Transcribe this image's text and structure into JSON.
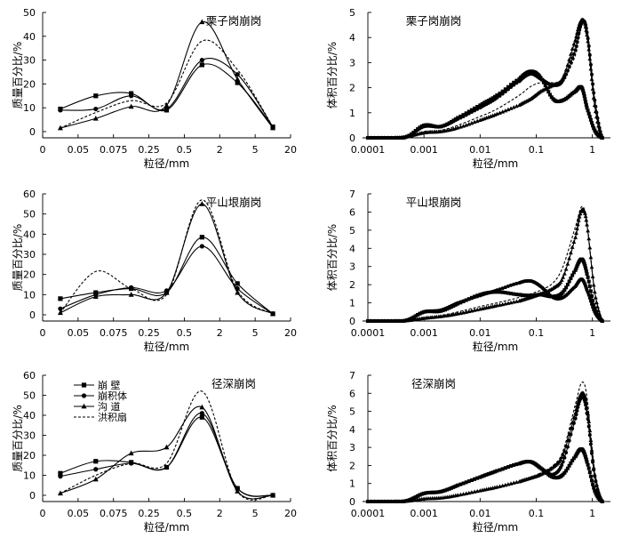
{
  "legend": [
    "崩 壁",
    "崩积体",
    "沟 道",
    "洪积扇"
  ],
  "chart_data": [
    {
      "type": "line",
      "title": "栗子岗崩岗",
      "xlabel": "粒径/mm",
      "ylabel": "质量百分比/%",
      "x_scale": "categorical",
      "categories": [
        "0",
        "0.05",
        "0.075",
        "0.25",
        "0.5",
        "2",
        "5",
        "20"
      ],
      "ylim": [
        0,
        50
      ],
      "yticks": [
        0,
        10,
        20,
        30,
        40,
        50
      ],
      "grid": false,
      "legend_position": "none",
      "series": [
        {
          "name": "崩 壁",
          "x": [
            0.5,
            1.5,
            2.5,
            3.5,
            4.5,
            5.5,
            6.5
          ],
          "values": [
            9.5,
            15,
            16,
            9,
            28,
            20.5,
            2
          ]
        },
        {
          "name": "崩积体",
          "x": [
            0.5,
            1.5,
            2.5,
            3.5,
            4.5,
            5.5,
            6.5
          ],
          "values": [
            9,
            9.5,
            15,
            9.5,
            30,
            24,
            2
          ]
        },
        {
          "name": "沟 道",
          "x": [
            0.5,
            1.5,
            2.5,
            3.5,
            4.5,
            5.5,
            6.5
          ],
          "values": [
            1.5,
            5.5,
            10.5,
            11,
            46,
            22,
            1.5
          ]
        },
        {
          "name": "洪积扇",
          "x": [
            0.5,
            1.5,
            2.5,
            3.5,
            4.5,
            5.5,
            6.5
          ],
          "values": [
            1.5,
            8,
            13,
            12,
            38,
            26,
            2
          ]
        }
      ]
    },
    {
      "type": "line",
      "title": "栗子岗崩岗",
      "xlabel": "粒径/mm",
      "ylabel": "体积百分比/%",
      "x_scale": "log",
      "xticks": [
        0.0001,
        0.001,
        0.01,
        0.1,
        1
      ],
      "xtick_labels": [
        "0.0001",
        "0.001",
        "0.01",
        "0.1",
        "1"
      ],
      "ylim": [
        0,
        5
      ],
      "yticks": [
        0,
        1,
        2,
        3,
        4,
        5
      ],
      "grid": false,
      "legend_position": "none",
      "series": [
        {
          "name": "崩 壁",
          "x": [
            0.0001,
            0.0003,
            0.0005,
            0.001,
            0.002,
            0.004,
            0.01,
            0.02,
            0.05,
            0.08,
            0.12,
            0.2,
            0.3,
            0.5,
            0.65,
            0.8,
            1.1,
            1.5
          ],
          "values": [
            0,
            0,
            0.05,
            0.5,
            0.45,
            0.8,
            1.3,
            1.7,
            2.35,
            2.65,
            2.4,
            1.55,
            1.5,
            1.85,
            2.0,
            1.2,
            0.3,
            0
          ]
        },
        {
          "name": "崩积体",
          "x": [
            0.0001,
            0.0003,
            0.0005,
            0.001,
            0.002,
            0.004,
            0.01,
            0.02,
            0.05,
            0.08,
            0.12,
            0.2,
            0.3,
            0.5,
            0.65,
            0.8,
            1.1,
            1.5
          ],
          "values": [
            0,
            0,
            0.05,
            0.45,
            0.45,
            0.75,
            1.2,
            1.6,
            2.25,
            2.55,
            2.35,
            2.1,
            2.3,
            3.5,
            4.6,
            4.2,
            1.5,
            0
          ]
        },
        {
          "name": "沟 道",
          "x": [
            0.0001,
            0.0003,
            0.0005,
            0.001,
            0.002,
            0.004,
            0.01,
            0.02,
            0.05,
            0.08,
            0.12,
            0.2,
            0.3,
            0.5,
            0.65,
            0.8,
            1.1,
            1.5
          ],
          "values": [
            0,
            0,
            0.05,
            0.2,
            0.25,
            0.4,
            0.7,
            0.95,
            1.3,
            1.55,
            1.85,
            2.1,
            2.4,
            3.9,
            4.7,
            4.1,
            1.3,
            0
          ]
        },
        {
          "name": "洪积扇",
          "x": [
            0.0001,
            0.0003,
            0.0005,
            0.001,
            0.002,
            0.004,
            0.01,
            0.02,
            0.05,
            0.08,
            0.12,
            0.2,
            0.3,
            0.5,
            0.65,
            0.8,
            1.1,
            1.5
          ],
          "values": [
            0,
            0,
            0.02,
            0.25,
            0.3,
            0.5,
            0.85,
            1.15,
            1.7,
            2.05,
            2.2,
            2.2,
            2.3,
            3.3,
            4.5,
            4.4,
            1.6,
            0
          ]
        }
      ]
    },
    {
      "type": "line",
      "title": "平山垠崩岗",
      "xlabel": "粒径/mm",
      "ylabel": "质量百分比/%",
      "x_scale": "categorical",
      "categories": [
        "0",
        "0.05",
        "0.075",
        "0.25",
        "0.5",
        "2",
        "5",
        "20"
      ],
      "ylim": [
        0,
        60
      ],
      "yticks": [
        0,
        10,
        20,
        30,
        40,
        50,
        60
      ],
      "grid": false,
      "legend_position": "none",
      "series": [
        {
          "name": "崩 壁",
          "x": [
            0.5,
            1.5,
            2.5,
            3.5,
            4.5,
            5.5,
            6.5
          ],
          "values": [
            8,
            11,
            13,
            11,
            38.5,
            15.5,
            0.5
          ]
        },
        {
          "name": "崩积体",
          "x": [
            0.5,
            1.5,
            2.5,
            3.5,
            4.5,
            5.5,
            6.5
          ],
          "values": [
            3,
            10,
            13.5,
            12,
            34,
            13,
            0.5
          ]
        },
        {
          "name": "沟 道",
          "x": [
            0.5,
            1.5,
            2.5,
            3.5,
            4.5,
            5.5,
            6.5
          ],
          "values": [
            1,
            9,
            10,
            11,
            55,
            11,
            0.5
          ]
        },
        {
          "name": "洪积扇",
          "x": [
            0.5,
            1.5,
            2.5,
            3.5,
            4.5,
            5.5,
            6.5
          ],
          "values": [
            1,
            21.5,
            13,
            10,
            57,
            12,
            0.5
          ]
        }
      ]
    },
    {
      "type": "line",
      "title": "平山垠崩岗",
      "xlabel": "粒径/mm",
      "ylabel": "体积百分比/%",
      "x_scale": "log",
      "xticks": [
        0.0001,
        0.001,
        0.01,
        0.1,
        1
      ],
      "xtick_labels": [
        "0.0001",
        "0.001",
        "0.01",
        "0.1",
        "1"
      ],
      "ylim": [
        0,
        7
      ],
      "yticks": [
        0,
        1,
        2,
        3,
        4,
        5,
        6,
        7
      ],
      "grid": false,
      "legend_position": "none",
      "series": [
        {
          "name": "崩 壁",
          "x": [
            0.0001,
            0.0003,
            0.0005,
            0.001,
            0.002,
            0.004,
            0.01,
            0.02,
            0.05,
            0.08,
            0.12,
            0.2,
            0.3,
            0.5,
            0.65,
            0.8,
            1.1,
            1.5
          ],
          "values": [
            0,
            0,
            0.05,
            0.5,
            0.55,
            0.95,
            1.45,
            1.6,
            1.45,
            1.4,
            1.45,
            1.35,
            1.6,
            2.8,
            3.4,
            2.6,
            0.7,
            0
          ]
        },
        {
          "name": "崩积体",
          "x": [
            0.0001,
            0.0003,
            0.0005,
            0.001,
            0.002,
            0.004,
            0.01,
            0.02,
            0.05,
            0.08,
            0.12,
            0.2,
            0.3,
            0.5,
            0.65,
            0.8,
            1.1,
            1.5
          ],
          "values": [
            0,
            0,
            0.05,
            0.5,
            0.6,
            1.0,
            1.4,
            1.7,
            2.1,
            2.2,
            1.9,
            1.3,
            1.3,
            1.9,
            2.3,
            1.7,
            0.5,
            0
          ]
        },
        {
          "name": "沟 道",
          "x": [
            0.0001,
            0.0003,
            0.0005,
            0.001,
            0.002,
            0.004,
            0.01,
            0.02,
            0.05,
            0.08,
            0.12,
            0.2,
            0.3,
            0.5,
            0.65,
            0.8,
            1.1,
            1.5
          ],
          "values": [
            0,
            0,
            0.02,
            0.15,
            0.25,
            0.4,
            0.65,
            0.85,
            1.1,
            1.3,
            1.5,
            1.8,
            2.4,
            4.6,
            6.1,
            5.3,
            1.6,
            0
          ]
        },
        {
          "name": "洪积扇",
          "x": [
            0.0001,
            0.0003,
            0.0005,
            0.001,
            0.002,
            0.004,
            0.01,
            0.02,
            0.05,
            0.08,
            0.12,
            0.2,
            0.3,
            0.5,
            0.65,
            0.8,
            1.1,
            1.5
          ],
          "values": [
            0,
            0,
            0.02,
            0.2,
            0.3,
            0.5,
            0.8,
            1.0,
            1.3,
            1.5,
            1.7,
            2.1,
            3.0,
            5.2,
            6.3,
            5.4,
            1.6,
            0
          ]
        }
      ]
    },
    {
      "type": "line",
      "title": "径深崩岗",
      "xlabel": "粒径/mm",
      "ylabel": "质量百分比/%",
      "x_scale": "categorical",
      "categories": [
        "0",
        "0.05",
        "0.075",
        "0.25",
        "0.5",
        "2",
        "5",
        "20"
      ],
      "ylim": [
        0,
        60
      ],
      "yticks": [
        0,
        10,
        20,
        30,
        40,
        50,
        60
      ],
      "grid": false,
      "legend_position": "top-left",
      "series": [
        {
          "name": "崩 壁",
          "x": [
            0.5,
            1.5,
            2.5,
            3.5,
            4.5,
            5.5,
            6.5
          ],
          "values": [
            11,
            17,
            16.5,
            14,
            39,
            3.5,
            0
          ]
        },
        {
          "name": "崩积体",
          "x": [
            0.5,
            1.5,
            2.5,
            3.5,
            4.5,
            5.5,
            6.5
          ],
          "values": [
            9.5,
            13,
            16,
            14,
            41,
            3.5,
            0
          ]
        },
        {
          "name": "沟 道",
          "x": [
            0.5,
            1.5,
            2.5,
            3.5,
            4.5,
            5.5,
            6.5
          ],
          "values": [
            1,
            8,
            21,
            24,
            44,
            2,
            0
          ]
        },
        {
          "name": "洪积扇",
          "x": [
            0.5,
            1.5,
            2.5,
            3.5,
            4.5,
            5.5,
            6.5
          ],
          "values": [
            1,
            10,
            16,
            16,
            52,
            2,
            0
          ]
        }
      ]
    },
    {
      "type": "line",
      "title": "径深崩岗",
      "xlabel": "粒径/mm",
      "ylabel": "体积百分比/%",
      "x_scale": "log",
      "xticks": [
        0.0001,
        0.001,
        0.01,
        0.1,
        1
      ],
      "xtick_labels": [
        "0.0001",
        "0.001",
        "0.01",
        "0.1",
        "1"
      ],
      "ylim": [
        0,
        7
      ],
      "yticks": [
        0,
        1,
        2,
        3,
        4,
        5,
        6,
        7
      ],
      "grid": false,
      "legend_position": "none",
      "series": [
        {
          "name": "崩 壁",
          "x": [
            0.0001,
            0.0003,
            0.0005,
            0.001,
            0.002,
            0.004,
            0.01,
            0.02,
            0.05,
            0.08,
            0.12,
            0.2,
            0.3,
            0.5,
            0.65,
            0.8,
            1.1,
            1.5
          ],
          "values": [
            0,
            0,
            0.05,
            0.45,
            0.55,
            0.9,
            1.35,
            1.7,
            2.1,
            2.2,
            1.85,
            1.35,
            1.5,
            2.5,
            2.9,
            2.2,
            0.6,
            0
          ]
        },
        {
          "name": "崩积体",
          "x": [
            0.0001,
            0.0003,
            0.0005,
            0.001,
            0.002,
            0.004,
            0.01,
            0.02,
            0.05,
            0.08,
            0.12,
            0.2,
            0.3,
            0.5,
            0.65,
            0.8,
            1.1,
            1.5
          ],
          "values": [
            0,
            0,
            0.05,
            0.45,
            0.55,
            0.9,
            1.35,
            1.7,
            2.1,
            2.2,
            1.85,
            1.5,
            2.2,
            4.6,
            5.8,
            4.9,
            1.4,
            0
          ]
        },
        {
          "name": "沟 道",
          "x": [
            0.0001,
            0.0003,
            0.0005,
            0.001,
            0.002,
            0.004,
            0.01,
            0.02,
            0.05,
            0.08,
            0.12,
            0.2,
            0.3,
            0.5,
            0.65,
            0.8,
            1.1,
            1.5
          ],
          "values": [
            0,
            0,
            0.02,
            0.15,
            0.2,
            0.35,
            0.6,
            0.8,
            1.1,
            1.3,
            1.5,
            1.9,
            2.6,
            4.9,
            6.0,
            5.2,
            1.5,
            0
          ]
        },
        {
          "name": "洪积扇",
          "x": [
            0.0001,
            0.0003,
            0.0005,
            0.001,
            0.002,
            0.004,
            0.01,
            0.02,
            0.05,
            0.08,
            0.12,
            0.2,
            0.3,
            0.5,
            0.65,
            0.8,
            1.1,
            1.5
          ],
          "values": [
            0,
            0,
            0.02,
            0.15,
            0.2,
            0.35,
            0.6,
            0.8,
            1.1,
            1.3,
            1.6,
            2.0,
            2.8,
            5.4,
            6.6,
            5.8,
            1.7,
            0
          ]
        }
      ]
    }
  ]
}
